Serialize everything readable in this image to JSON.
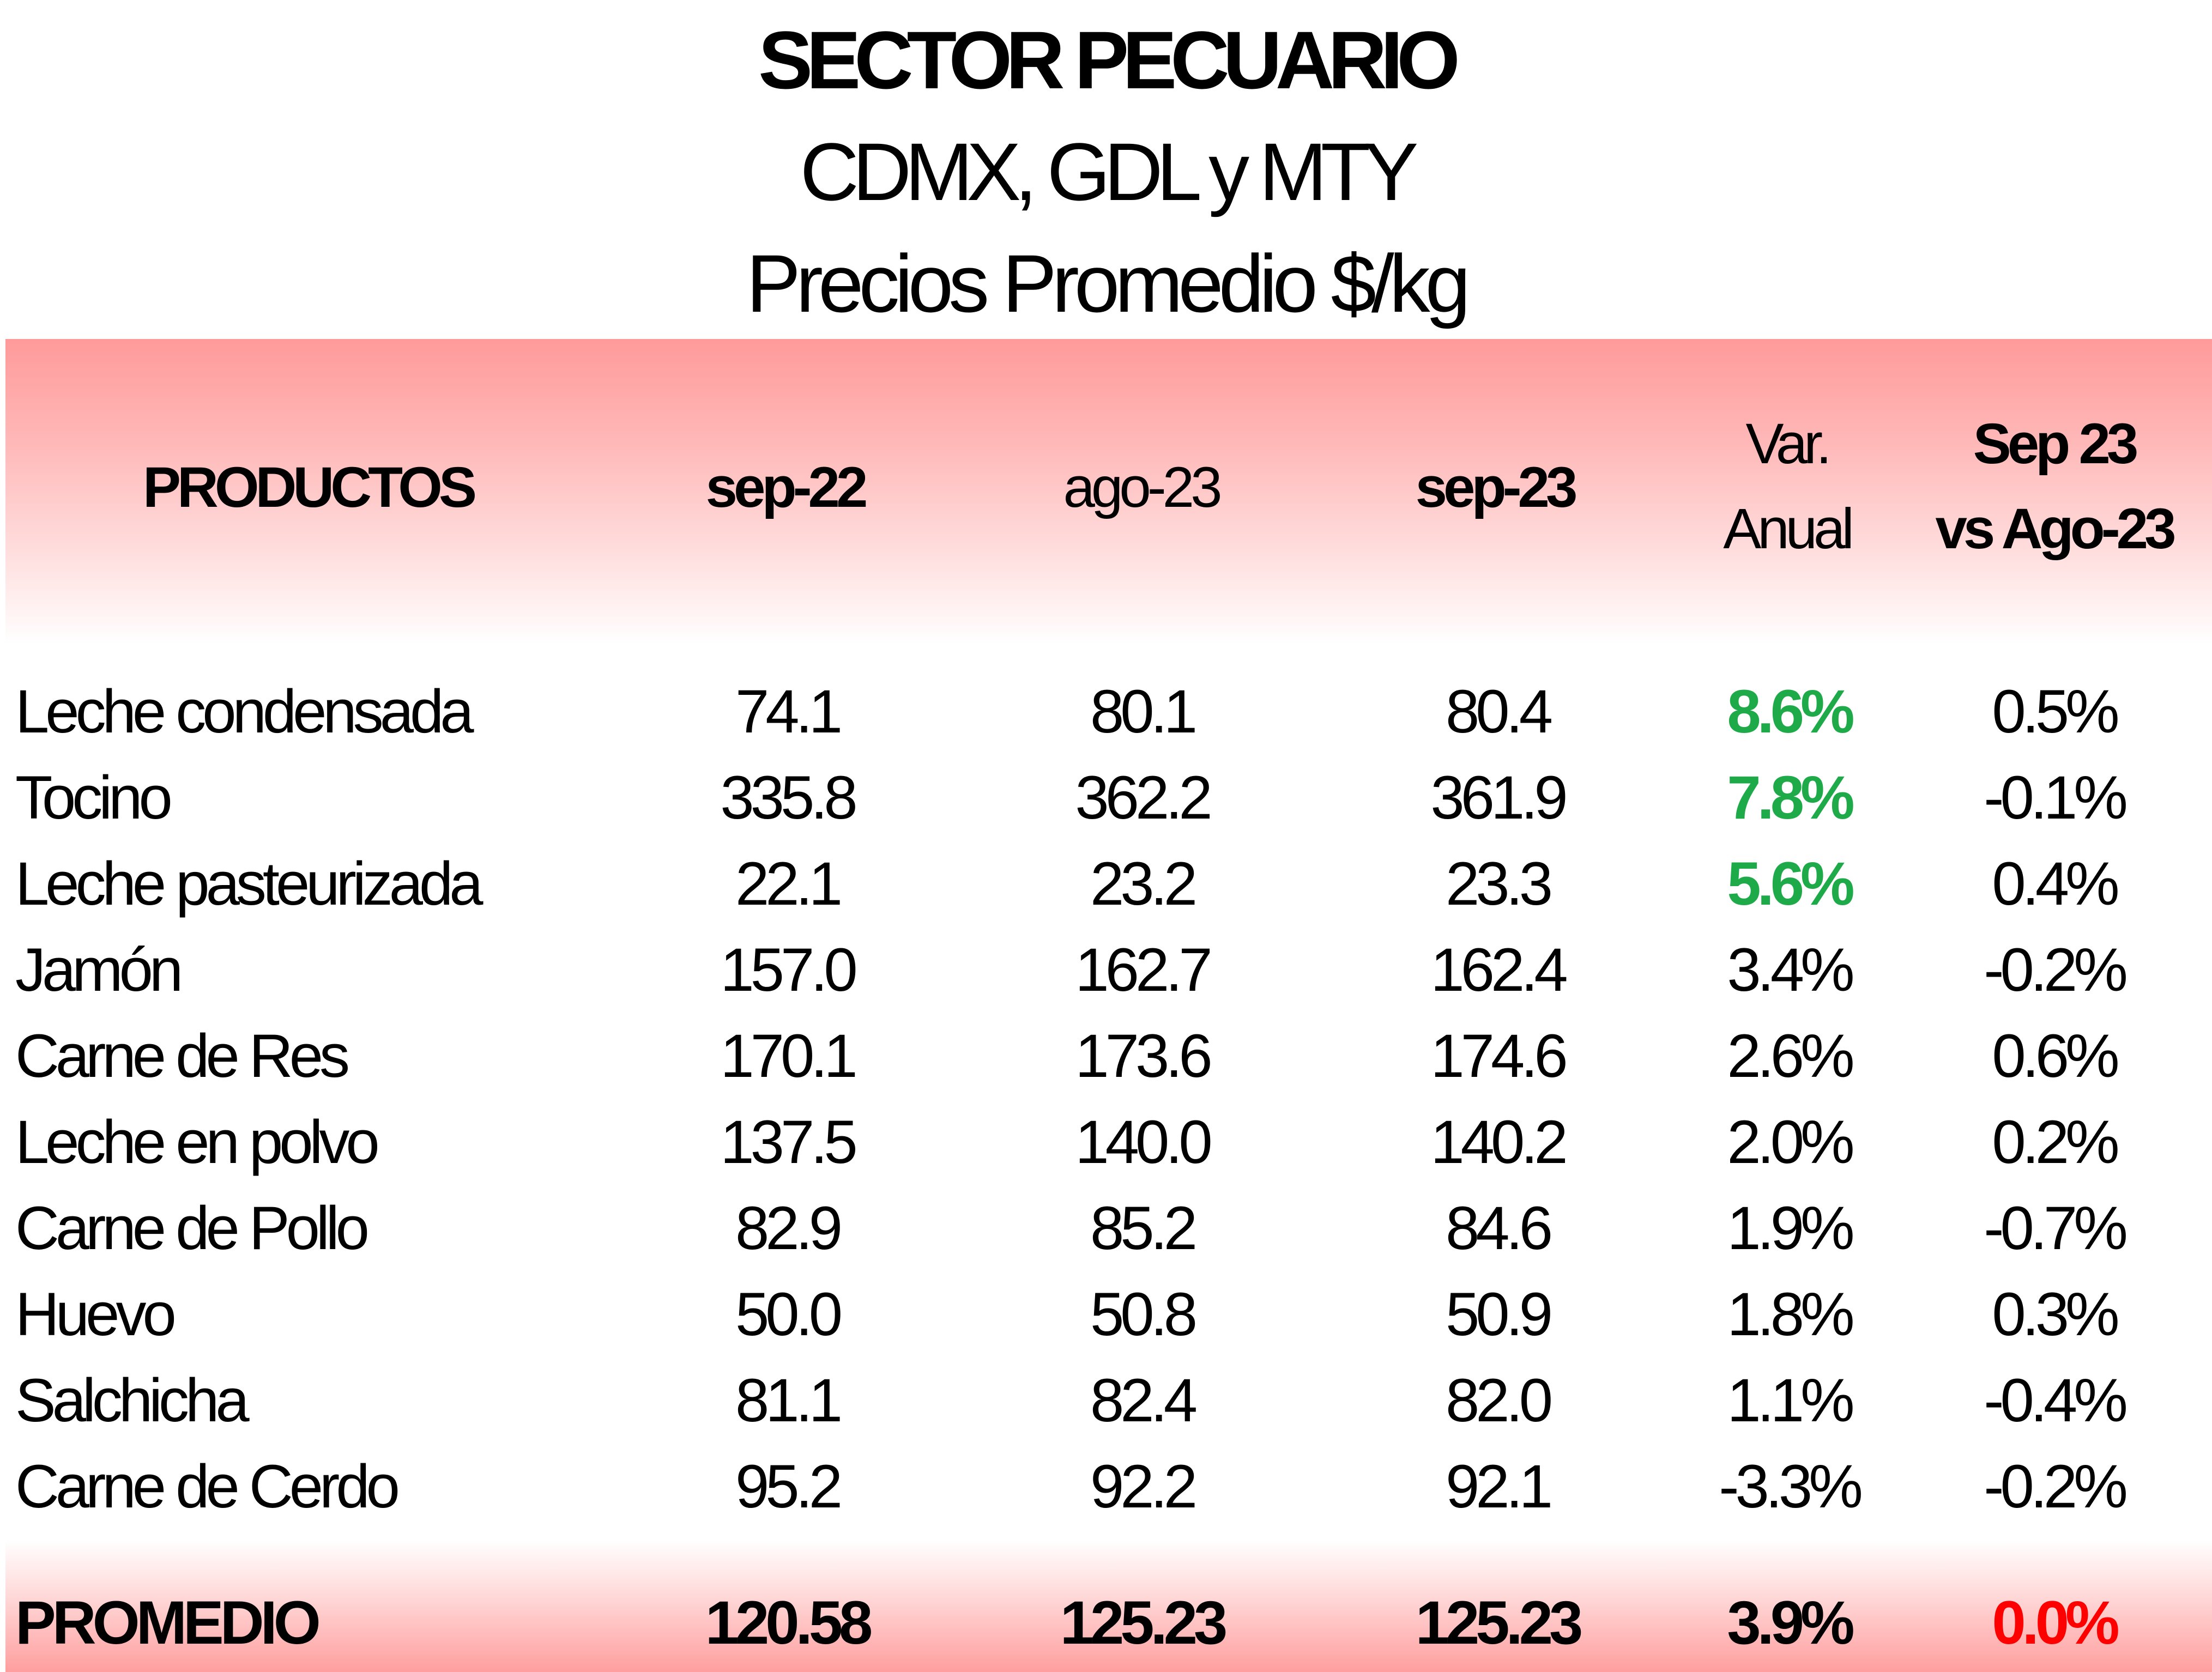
{
  "title": "SECTOR PECUARIO",
  "subtitle": "CDMX, GDL y MTY",
  "subtitle2": "Precios Promedio $/kg",
  "colors": {
    "header_band": "#ff9a9a",
    "positive_highlight": "#1faa4a",
    "zero_highlight": "#ff0000"
  },
  "headers": {
    "productos": "PRODUCTOS",
    "sep22": "sep-22",
    "ago23": "ago-23",
    "sep23": "sep-23",
    "var_line1": "Var.",
    "var_line2": "Anual",
    "cmp_line1": "Sep 23",
    "cmp_line2": "vs Ago-23"
  },
  "rows": [
    {
      "producto": "Leche condensada",
      "sep22": "74.1",
      "ago23": "80.1",
      "sep23": "80.4",
      "var": "8.6%",
      "cmp": "0.5%",
      "var_highlight": true
    },
    {
      "producto": "Tocino",
      "sep22": "335.8",
      "ago23": "362.2",
      "sep23": "361.9",
      "var": "7.8%",
      "cmp": "-0.1%",
      "var_highlight": true
    },
    {
      "producto": "Leche pasteurizada",
      "sep22": "22.1",
      "ago23": "23.2",
      "sep23": "23.3",
      "var": "5.6%",
      "cmp": "0.4%",
      "var_highlight": true
    },
    {
      "producto": "Jamón",
      "sep22": "157.0",
      "ago23": "162.7",
      "sep23": "162.4",
      "var": "3.4%",
      "cmp": "-0.2%",
      "var_highlight": false
    },
    {
      "producto": "Carne de Res",
      "sep22": "170.1",
      "ago23": "173.6",
      "sep23": "174.6",
      "var": "2.6%",
      "cmp": "0.6%",
      "var_highlight": false
    },
    {
      "producto": "Leche en polvo",
      "sep22": "137.5",
      "ago23": "140.0",
      "sep23": "140.2",
      "var": "2.0%",
      "cmp": "0.2%",
      "var_highlight": false
    },
    {
      "producto": "Carne de Pollo",
      "sep22": "82.9",
      "ago23": "85.2",
      "sep23": "84.6",
      "var": "1.9%",
      "cmp": "-0.7%",
      "var_highlight": false
    },
    {
      "producto": "Huevo",
      "sep22": "50.0",
      "ago23": "50.8",
      "sep23": "50.9",
      "var": "1.8%",
      "cmp": "0.3%",
      "var_highlight": false
    },
    {
      "producto": "Salchicha",
      "sep22": "81.1",
      "ago23": "82.4",
      "sep23": "82.0",
      "var": "1.1%",
      "cmp": "-0.4%",
      "var_highlight": false
    },
    {
      "producto": "Carne de Cerdo",
      "sep22": "95.2",
      "ago23": "92.2",
      "sep23": "92.1",
      "var": "-3.3%",
      "cmp": "-0.2%",
      "var_highlight": false
    }
  ],
  "promedio": {
    "label": "PROMEDIO",
    "sep22": "120.58",
    "ago23": "125.23",
    "sep23": "125.23",
    "var": "3.9%",
    "cmp": "0.0%"
  }
}
